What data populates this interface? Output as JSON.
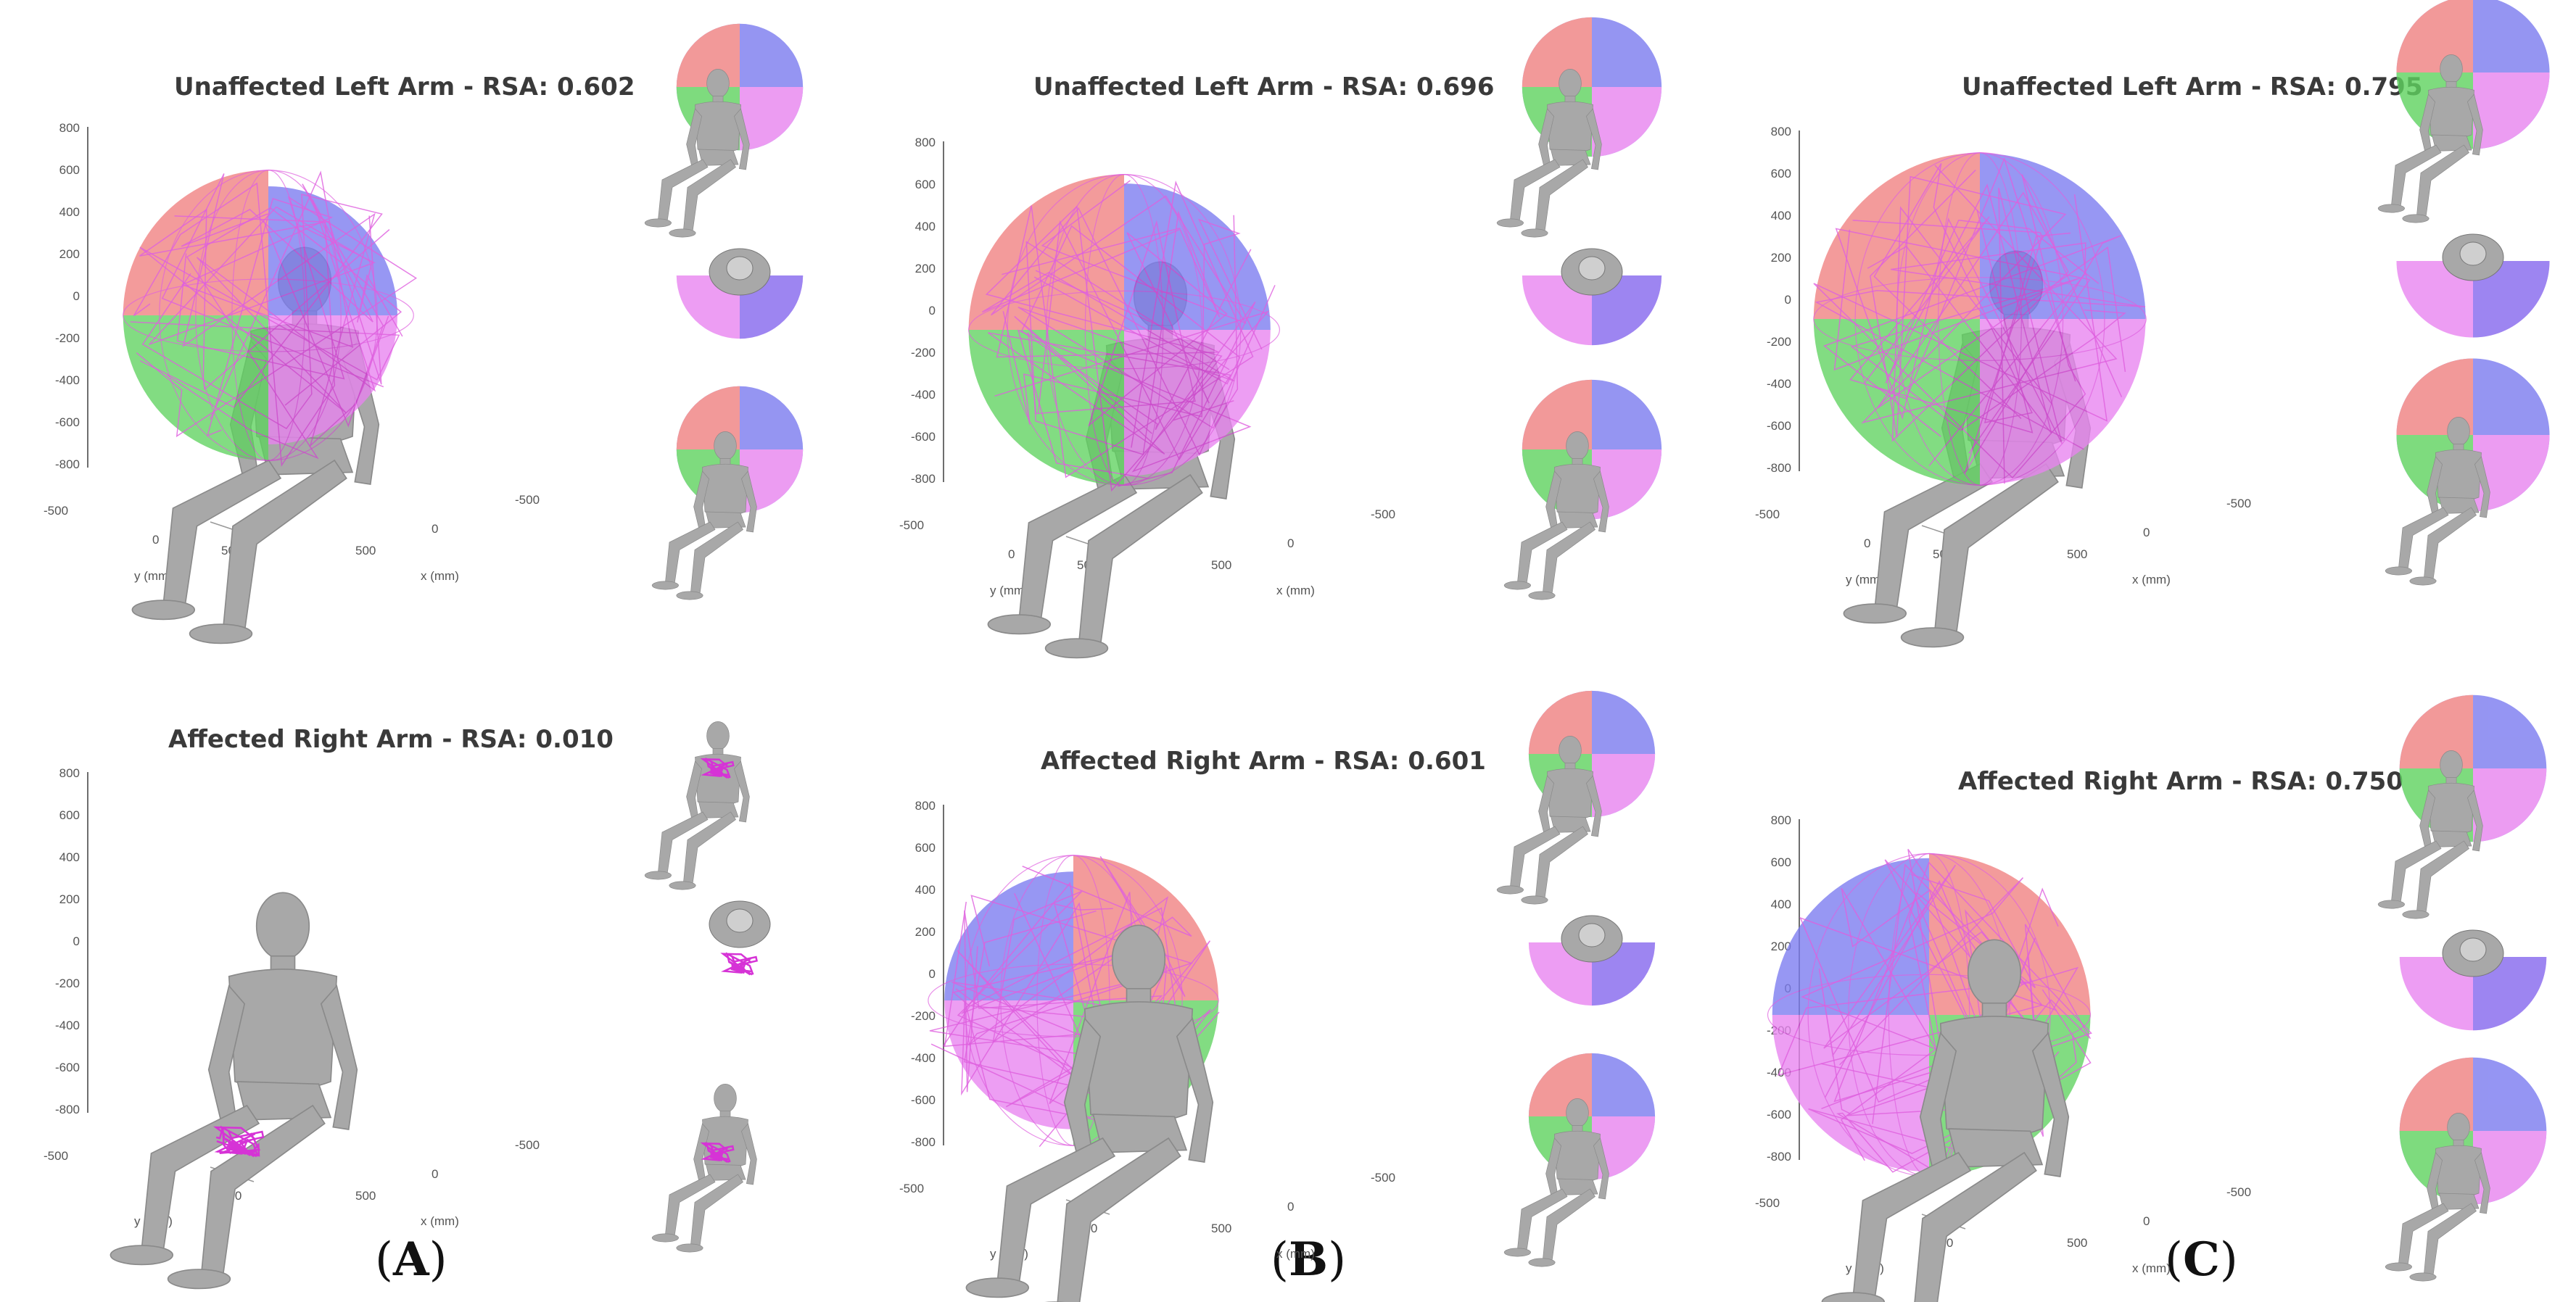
{
  "panels": [
    {
      "id": "A",
      "caption_letter": "A",
      "plots": [
        {
          "title": "Unaffected Left Arm - RSA: 0.602",
          "rsa": 0.602,
          "side": "left"
        },
        {
          "title": "Affected Right Arm - RSA: 0.010",
          "rsa": 0.01,
          "side": "right"
        }
      ]
    },
    {
      "id": "B",
      "caption_letter": "B",
      "plots": [
        {
          "title": "Unaffected Left Arm - RSA: 0.696",
          "rsa": 0.696,
          "side": "left"
        },
        {
          "title": "Affected Right Arm - RSA: 0.601",
          "rsa": 0.601,
          "side": "right"
        }
      ]
    },
    {
      "id": "C",
      "caption_letter": "C",
      "plots": [
        {
          "title": "Unaffected Left Arm - RSA: 0.795",
          "rsa": 0.795,
          "side": "left"
        },
        {
          "title": "Affected Right Arm - RSA: 0.750",
          "rsa": 0.75,
          "side": "right"
        }
      ]
    }
  ],
  "axes": {
    "z_ticks": [
      "800",
      "600",
      "400",
      "200",
      "0",
      "-200",
      "-400",
      "-600",
      "-800"
    ],
    "y_ticks": [
      "-500",
      "0",
      "500"
    ],
    "x_ticks": [
      "500",
      "0",
      "-500"
    ],
    "y_label": "y (mm)",
    "x_label": "x (mm)"
  },
  "colors": {
    "red_quadrant": "#f08080",
    "green_quadrant": "#5fd35f",
    "blue_quadrant": "#7b7bf0",
    "magenta_quadrant": "#e884f0",
    "trajectory": "#d633d6",
    "figure": "#a8a8a8"
  }
}
